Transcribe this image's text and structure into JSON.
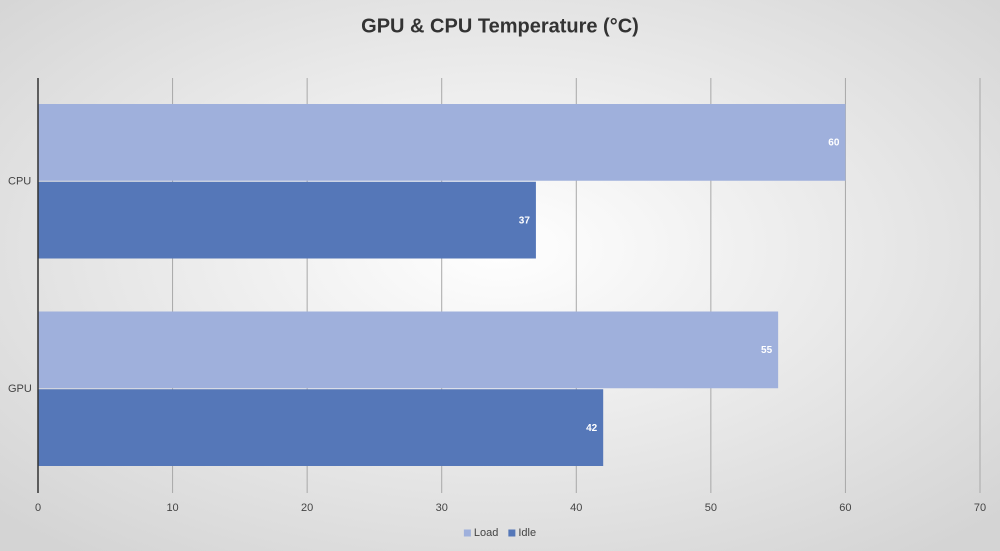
{
  "chart_data": {
    "type": "bar",
    "orientation": "horizontal",
    "title": "GPU & CPU Temperature (°C)",
    "categories": [
      "CPU",
      "GPU"
    ],
    "series": [
      {
        "name": "Load",
        "color": "#9fb0dc",
        "values": [
          60,
          55
        ]
      },
      {
        "name": "Idle",
        "color": "#5577b8",
        "values": [
          37,
          42
        ]
      }
    ],
    "xlim": [
      0,
      70
    ],
    "xticks": [
      0,
      10,
      20,
      30,
      40,
      50,
      60,
      70
    ],
    "grid": true,
    "legend": "bottom"
  }
}
